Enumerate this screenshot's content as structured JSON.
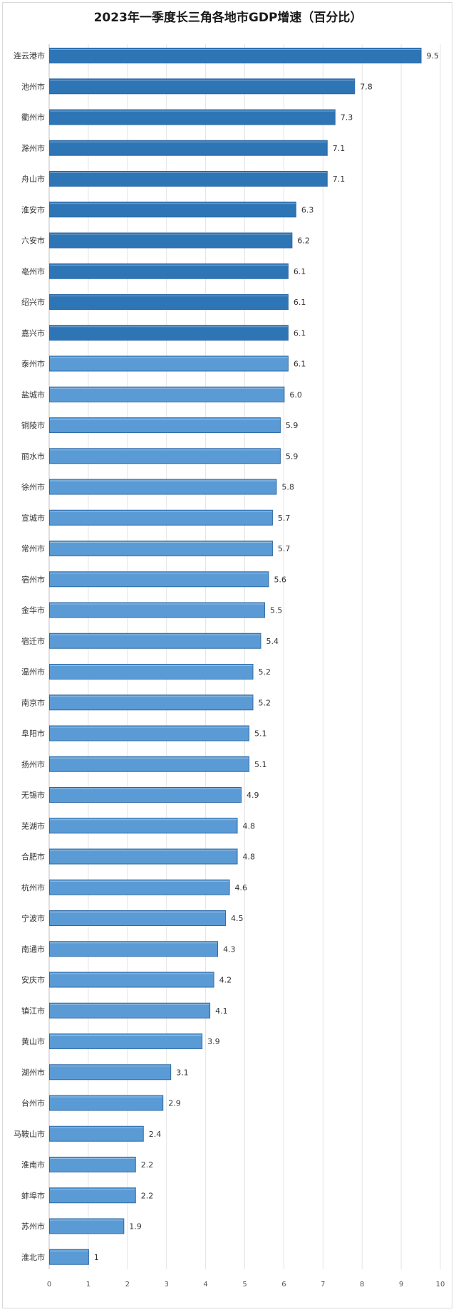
{
  "colors": {
    "top_bar": "#2e75b6",
    "bar": "#5b9bd5",
    "bar_border": "#2f6aa6",
    "grid": "#e4e4e4",
    "axis": "#bfbfbf"
  },
  "chart_data": {
    "type": "bar",
    "orientation": "horizontal",
    "title": "2023年一季度长三角各地市GDP增速（百分比）",
    "xlabel": "",
    "ylabel": "",
    "xlim": [
      0,
      10
    ],
    "x_ticks": [
      0,
      1,
      2,
      3,
      4,
      5,
      6,
      7,
      8,
      9,
      10
    ],
    "grid": true,
    "highlighted_top_count": 10,
    "categories": [
      "连云港市",
      "池州市",
      "衢州市",
      "滁州市",
      "舟山市",
      "淮安市",
      "六安市",
      "亳州市",
      "绍兴市",
      "嘉兴市",
      "泰州市",
      "盐城市",
      "铜陵市",
      "丽水市",
      "徐州市",
      "宣城市",
      "常州市",
      "宿州市",
      "金华市",
      "宿迁市",
      "温州市",
      "南京市",
      "阜阳市",
      "扬州市",
      "无锡市",
      "芜湖市",
      "合肥市",
      "杭州市",
      "宁波市",
      "南通市",
      "安庆市",
      "镇江市",
      "黄山市",
      "湖州市",
      "台州市",
      "马鞍山市",
      "淮南市",
      "蚌埠市",
      "苏州市",
      "淮北市"
    ],
    "values": [
      9.5,
      7.8,
      7.3,
      7.1,
      7.1,
      6.3,
      6.2,
      6.1,
      6.1,
      6.1,
      6.1,
      6.0,
      5.9,
      5.9,
      5.8,
      5.7,
      5.7,
      5.6,
      5.5,
      5.4,
      5.2,
      5.2,
      5.1,
      5.1,
      4.9,
      4.8,
      4.8,
      4.6,
      4.5,
      4.3,
      4.2,
      4.1,
      3.9,
      3.1,
      2.9,
      2.4,
      2.2,
      2.2,
      1.9,
      1
    ],
    "value_labels": [
      "9.5",
      "7.8",
      "7.3",
      "7.1",
      "7.1",
      "6.3",
      "6.2",
      "6.1",
      "6.1",
      "6.1",
      "6.1",
      "6.0",
      "5.9",
      "5.9",
      "5.8",
      "5.7",
      "5.7",
      "5.6",
      "5.5",
      "5.4",
      "5.2",
      "5.2",
      "5.1",
      "5.1",
      "4.9",
      "4.8",
      "4.8",
      "4.6",
      "4.5",
      "4.3",
      "4.2",
      "4.1",
      "3.9",
      "3.1",
      "2.9",
      "2.4",
      "2.2",
      "2.2",
      "1.9",
      "1"
    ]
  }
}
